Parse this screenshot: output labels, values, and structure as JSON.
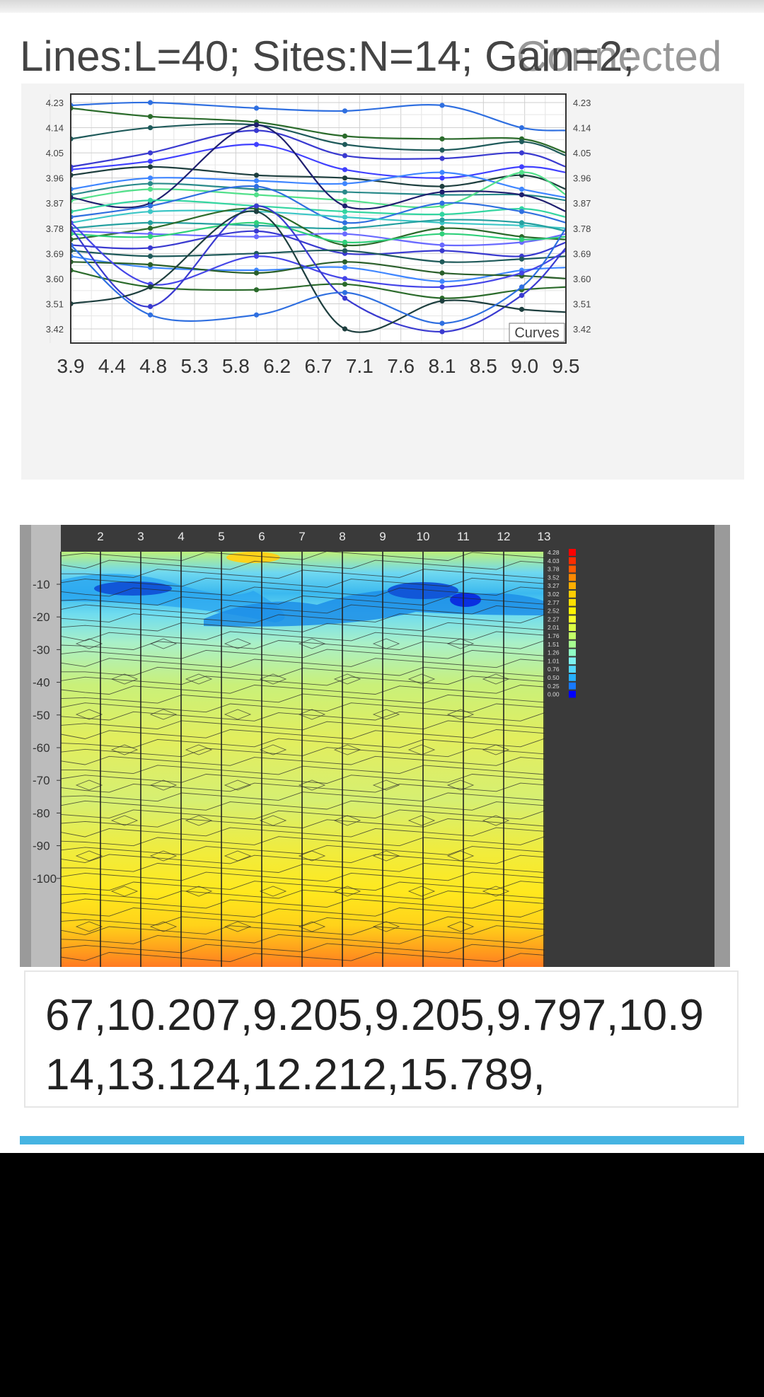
{
  "header": {
    "status_text": "Lines:L=40;  Sites:N=14;  Gain=2;",
    "overlay_text": "Connected"
  },
  "curve_chart": {
    "legend_label": "Curves",
    "x_ticks": [
      "3.9",
      "4.4",
      "4.8",
      "5.3",
      "5.8",
      "6.2",
      "6.7",
      "7.1",
      "7.6",
      "8.1",
      "8.5",
      "9.0",
      "9.5"
    ],
    "y_ticks": [
      "4.23",
      "4.14",
      "4.05",
      "3.96",
      "3.87",
      "3.78",
      "3.69",
      "3.60",
      "3.51",
      "3.42"
    ]
  },
  "contour_chart": {
    "x_ticks": [
      "2",
      "3",
      "4",
      "5",
      "6",
      "7",
      "8",
      "9",
      "10",
      "11",
      "12",
      "13"
    ],
    "y_ticks": [
      "-10",
      "-20",
      "-30",
      "-40",
      "-50",
      "-60",
      "-70",
      "-80",
      "-90",
      "-100"
    ],
    "colorbar_labels": [
      "4.28",
      "4.03",
      "3.78",
      "3.52",
      "3.27",
      "3.02",
      "2.77",
      "2.52",
      "2.27",
      "2.01",
      "1.76",
      "1.51",
      "1.26",
      "1.01",
      "0.76",
      "0.50",
      "0.25",
      "0.00"
    ],
    "colorbar_colors": [
      "#ff0000",
      "#ff2d00",
      "#ff5a00",
      "#ff8a00",
      "#ffae00",
      "#ffcc00",
      "#ffe000",
      "#fff200",
      "#f7ff2a",
      "#dcff45",
      "#c2ff68",
      "#a6ff90",
      "#8fffc4",
      "#7df2f0",
      "#52d8ff",
      "#26b0ff",
      "#1779ff",
      "#0000ff"
    ]
  },
  "readout": {
    "values_text": "67,10.207,9.205,9.205,9.797,10.914,13.124,12.212,15.789,"
  },
  "progress": {
    "value": 1.0
  },
  "chart_data": [
    {
      "type": "line",
      "title": "",
      "xlabel": "",
      "ylabel": "",
      "legend": "Curves",
      "x": [
        3.9,
        4.8,
        6.0,
        7.0,
        8.1,
        9.0,
        9.5
      ],
      "ylim": [
        3.42,
        4.23
      ],
      "series": [
        {
          "color": "#2f6fe0",
          "values": [
            4.22,
            4.23,
            4.21,
            4.2,
            4.22,
            4.14,
            4.13
          ]
        },
        {
          "color": "#2b6b2b",
          "values": [
            4.21,
            4.18,
            4.16,
            4.11,
            4.1,
            4.1,
            4.05
          ]
        },
        {
          "color": "#1f5a5a",
          "values": [
            4.1,
            4.14,
            4.15,
            4.08,
            4.06,
            4.09,
            4.04
          ]
        },
        {
          "color": "#3a3ad0",
          "values": [
            4.0,
            4.05,
            4.13,
            4.04,
            4.03,
            4.05,
            4.0
          ]
        },
        {
          "color": "#4040ff",
          "values": [
            3.99,
            4.02,
            4.08,
            3.99,
            3.96,
            4.0,
            3.98
          ]
        },
        {
          "color": "#1e3f3f",
          "values": [
            3.97,
            4.0,
            3.97,
            3.96,
            3.93,
            3.97,
            3.92
          ]
        },
        {
          "color": "#3f86ff",
          "values": [
            3.92,
            3.96,
            3.95,
            3.94,
            3.98,
            3.92,
            3.89
          ]
        },
        {
          "color": "#2a8a8a",
          "values": [
            3.9,
            3.94,
            3.92,
            3.91,
            3.9,
            3.9,
            3.88
          ]
        },
        {
          "color": "#52e08a",
          "values": [
            3.88,
            3.92,
            3.9,
            3.88,
            3.86,
            3.98,
            3.9
          ]
        },
        {
          "color": "#1f1f6f",
          "values": [
            3.89,
            3.87,
            4.15,
            3.86,
            3.91,
            3.9,
            3.84
          ]
        },
        {
          "color": "#33d5a0",
          "values": [
            3.84,
            3.88,
            3.86,
            3.84,
            3.83,
            3.85,
            3.82
          ]
        },
        {
          "color": "#2f6fe0",
          "values": [
            3.82,
            3.86,
            3.93,
            3.8,
            3.87,
            3.84,
            3.8
          ]
        },
        {
          "color": "#3cc6c6",
          "values": [
            3.8,
            3.84,
            3.84,
            3.82,
            3.8,
            3.79,
            3.78
          ]
        },
        {
          "color": "#25a0a0",
          "values": [
            3.78,
            3.8,
            3.79,
            3.78,
            3.81,
            3.8,
            3.77
          ]
        },
        {
          "color": "#2b6b2b",
          "values": [
            3.74,
            3.78,
            3.85,
            3.72,
            3.78,
            3.75,
            3.74
          ]
        },
        {
          "color": "#6a6aff",
          "values": [
            3.77,
            3.76,
            3.75,
            3.76,
            3.72,
            3.73,
            3.76
          ]
        },
        {
          "color": "#3a3ad0",
          "values": [
            3.72,
            3.71,
            3.77,
            3.69,
            3.7,
            3.68,
            3.73
          ]
        },
        {
          "color": "#2fd07a",
          "values": [
            3.76,
            3.75,
            3.8,
            3.73,
            3.76,
            3.74,
            3.75
          ]
        },
        {
          "color": "#1f5a5a",
          "values": [
            3.7,
            3.68,
            3.69,
            3.7,
            3.66,
            3.67,
            3.68
          ]
        },
        {
          "color": "#3f86ff",
          "values": [
            3.68,
            3.64,
            3.63,
            3.64,
            3.59,
            3.63,
            3.64
          ]
        },
        {
          "color": "#2a5f2a",
          "values": [
            3.66,
            3.65,
            3.62,
            3.66,
            3.62,
            3.61,
            3.6
          ]
        },
        {
          "color": "#4545e8",
          "values": [
            3.8,
            3.58,
            3.68,
            3.6,
            3.57,
            3.62,
            3.7
          ]
        },
        {
          "color": "#2b6b2b",
          "values": [
            3.63,
            3.57,
            3.56,
            3.58,
            3.53,
            3.56,
            3.57
          ]
        },
        {
          "color": "#3a3ad0",
          "values": [
            3.78,
            3.5,
            3.86,
            3.53,
            3.41,
            3.54,
            3.71
          ]
        },
        {
          "color": "#1e3f3f",
          "values": [
            3.51,
            3.57,
            3.84,
            3.42,
            3.52,
            3.49,
            3.48
          ]
        },
        {
          "color": "#2f6fe0",
          "values": [
            3.72,
            3.47,
            3.47,
            3.55,
            3.44,
            3.57,
            3.78
          ]
        }
      ]
    },
    {
      "type": "heatmap",
      "title": "",
      "x_ticks": [
        2,
        3,
        4,
        5,
        6,
        7,
        8,
        9,
        10,
        11,
        12,
        13
      ],
      "y_ticks": [
        -10,
        -20,
        -30,
        -40,
        -50,
        -60,
        -70,
        -80,
        -90,
        -100
      ],
      "colorbar": [
        4.28,
        4.03,
        3.78,
        3.52,
        3.27,
        3.02,
        2.77,
        2.52,
        2.27,
        2.01,
        1.76,
        1.51,
        1.26,
        1.01,
        0.76,
        0.5,
        0.25,
        0.0
      ]
    }
  ]
}
